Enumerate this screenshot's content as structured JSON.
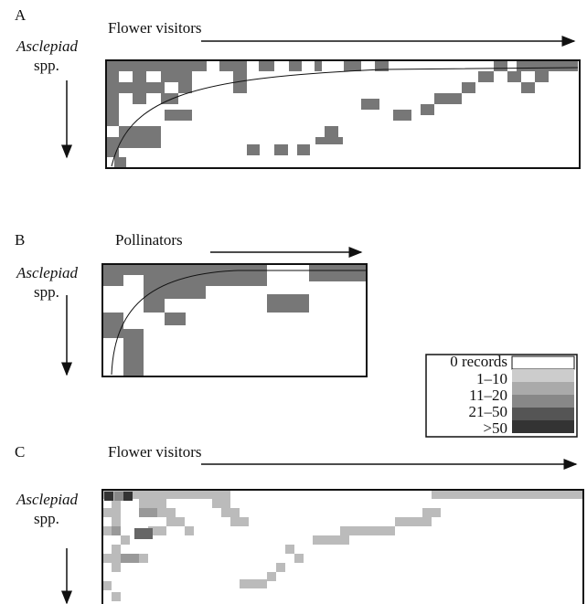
{
  "panels": [
    {
      "label": "A",
      "x_label": "Flower visitors",
      "y_label": "Asclepiad",
      "y_label_suffix": "spp."
    },
    {
      "label": "B",
      "x_label": "Pollinators",
      "y_label": "Asclepiad",
      "y_label_suffix": "spp."
    },
    {
      "label": "C",
      "x_label": "Flower visitors",
      "y_label": "Asclepiad",
      "y_label_suffix": "spp."
    }
  ],
  "legend": {
    "entries": [
      "0 records",
      "1–10",
      "11–20",
      "21–50",
      ">50"
    ]
  }
}
